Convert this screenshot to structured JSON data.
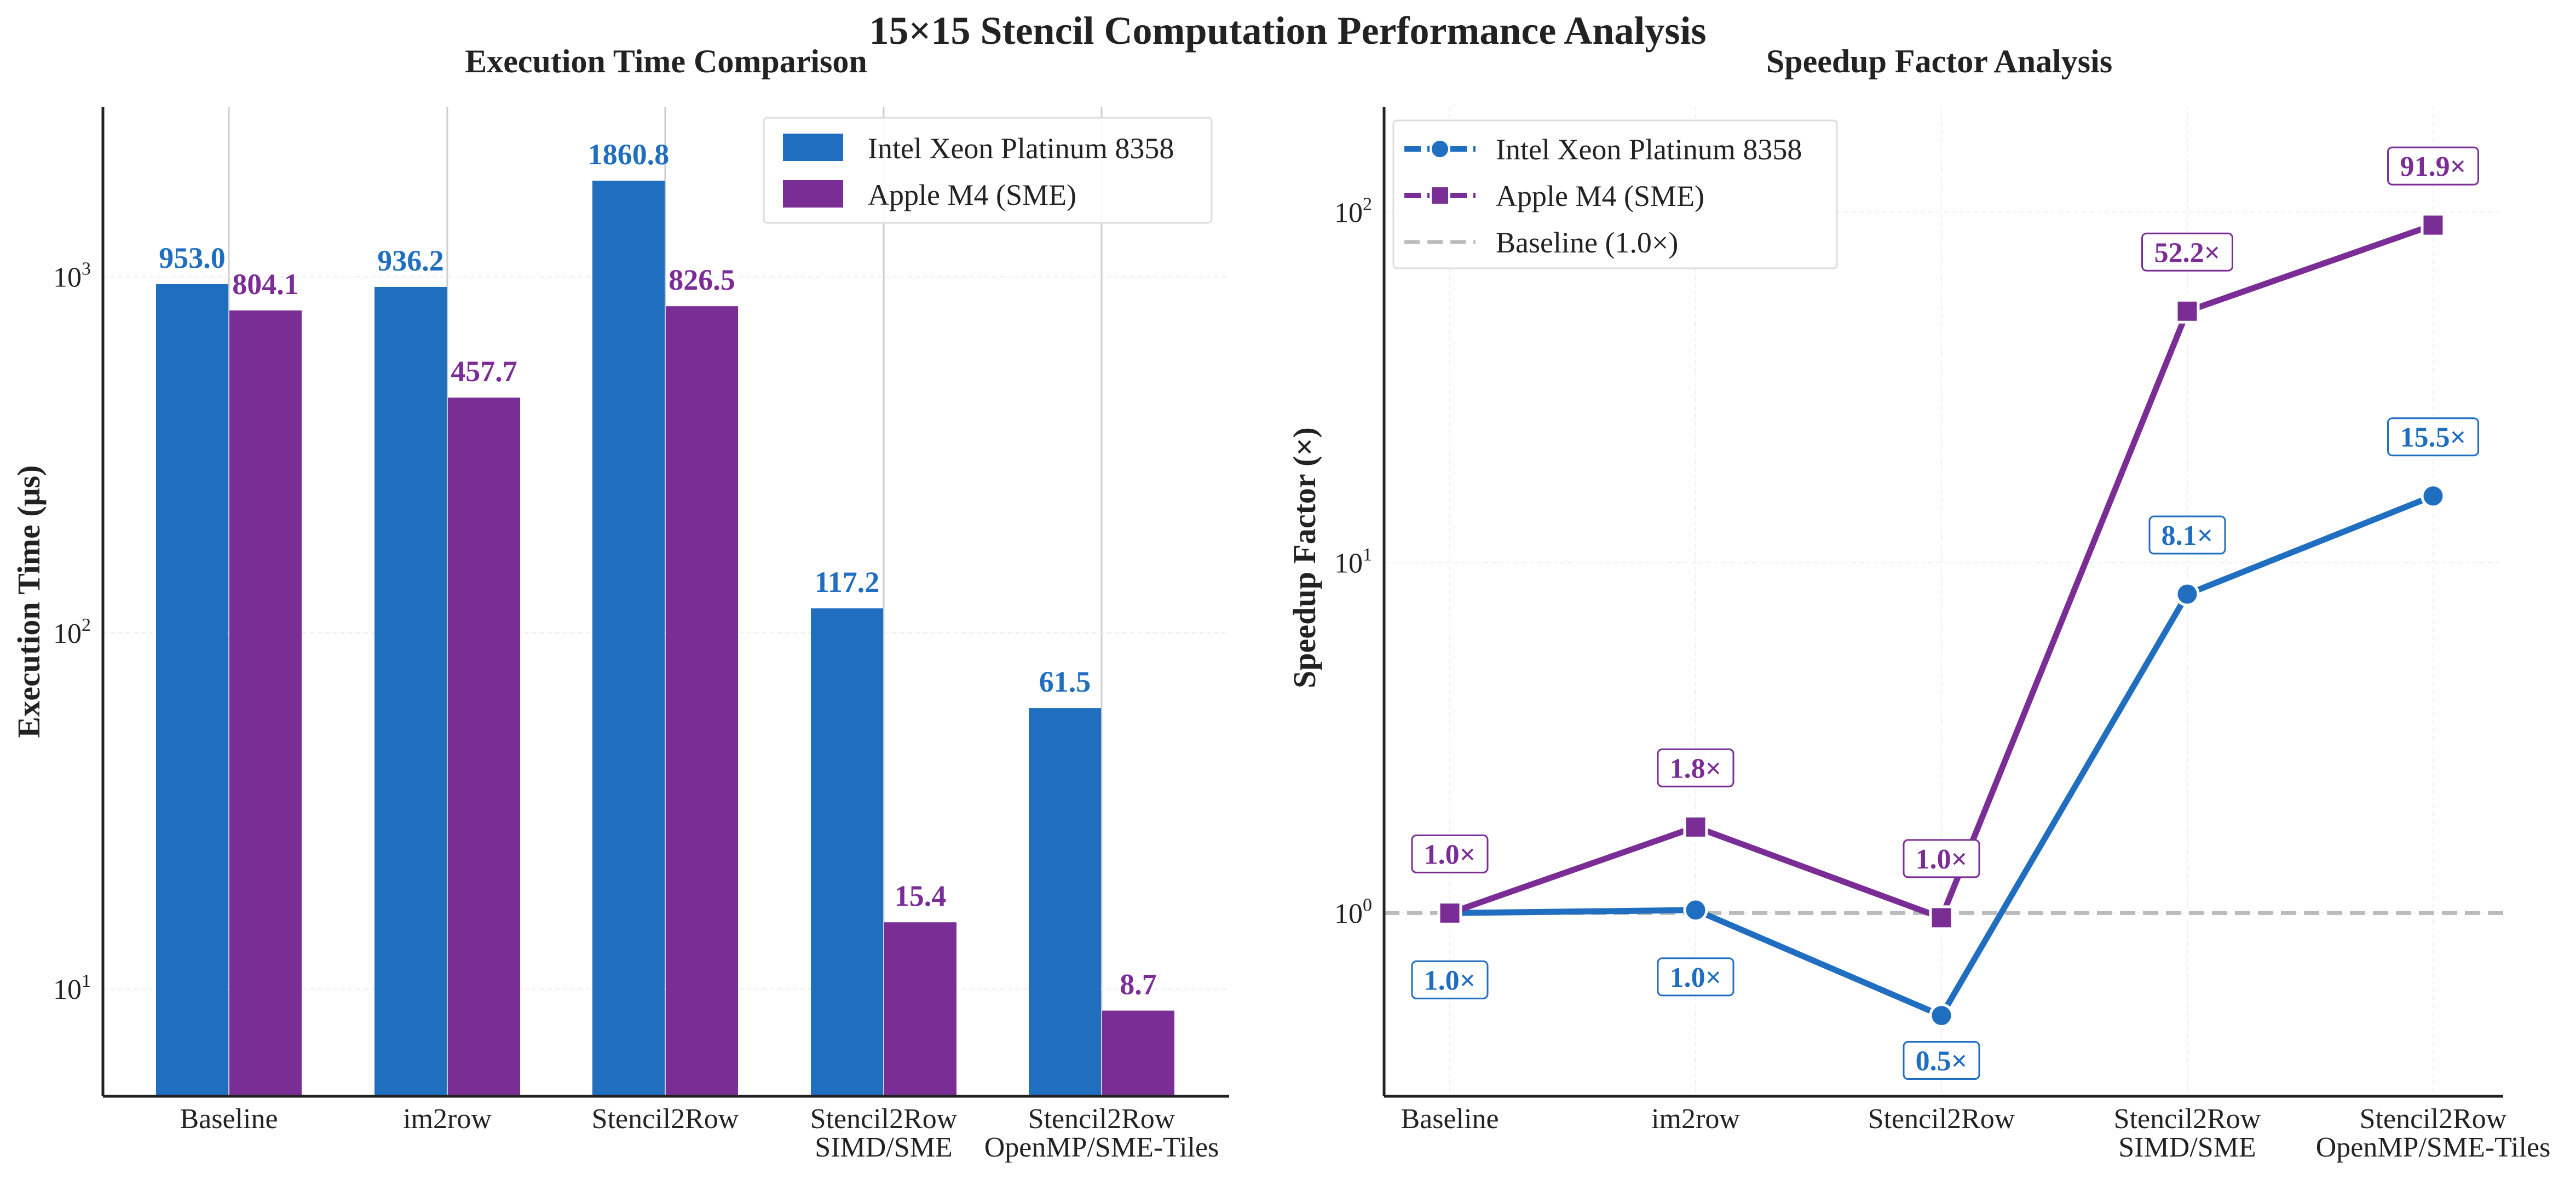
{
  "figure": {
    "title": "15×15 Stencil Computation Performance Analysis",
    "colors": {
      "intel": "#1f6ebf",
      "apple": "#7b2d96",
      "baseline_line": "#bbbbbb",
      "axis": "#222222"
    }
  },
  "chart_data": [
    {
      "type": "bar",
      "title": "Execution Time Comparison",
      "xlabel": "",
      "ylabel": "Execution Time (μs)",
      "yscale": "log",
      "ylim": [
        5,
        3000
      ],
      "yticks": [
        {
          "base": "10",
          "exp": "1",
          "value": 10
        },
        {
          "base": "10",
          "exp": "2",
          "value": 100
        },
        {
          "base": "10",
          "exp": "3",
          "value": 1000
        }
      ],
      "categories": [
        [
          "Baseline"
        ],
        [
          "im2row"
        ],
        [
          "Stencil2Row"
        ],
        [
          "Stencil2Row",
          "SIMD/SME"
        ],
        [
          "Stencil2Row",
          "OpenMP/SME-Tiles"
        ]
      ],
      "series": [
        {
          "name": "Intel Xeon Platinum 8358",
          "color": "#1f6ebf",
          "values": [
            953.0,
            936.2,
            1860.8,
            117.2,
            61.5
          ],
          "labels": [
            "953.0",
            "936.2",
            "1860.8",
            "117.2",
            "61.5"
          ]
        },
        {
          "name": "Apple M4 (SME)",
          "color": "#7b2d96",
          "values": [
            804.1,
            457.7,
            826.5,
            15.4,
            8.7
          ],
          "labels": [
            "804.1",
            "457.7",
            "826.5",
            "15.4",
            "8.7"
          ]
        }
      ],
      "legend": "top-right",
      "grid": true
    },
    {
      "type": "line",
      "title": "Speedup Factor Analysis",
      "xlabel": "",
      "ylabel": "Speedup Factor (×)",
      "yscale": "log",
      "ylim": [
        0.3,
        200
      ],
      "yticks": [
        {
          "base": "10",
          "exp": "0",
          "value": 1
        },
        {
          "base": "10",
          "exp": "1",
          "value": 10
        },
        {
          "base": "10",
          "exp": "2",
          "value": 100
        }
      ],
      "categories": [
        [
          "Baseline"
        ],
        [
          "im2row"
        ],
        [
          "Stencil2Row"
        ],
        [
          "Stencil2Row",
          "SIMD/SME"
        ],
        [
          "Stencil2Row",
          "OpenMP/SME-Tiles"
        ]
      ],
      "series": [
        {
          "name": "Intel Xeon Platinum 8358",
          "color": "#1f6ebf",
          "marker": "circle",
          "values": [
            1.0,
            1.02,
            0.51,
            8.13,
            15.5
          ],
          "labels": [
            "1.0×",
            "1.0×",
            "0.5×",
            "8.1×",
            "15.5×"
          ]
        },
        {
          "name": "Apple M4 (SME)",
          "color": "#7b2d96",
          "marker": "square",
          "values": [
            1.0,
            1.76,
            0.97,
            52.2,
            91.9
          ],
          "labels": [
            "1.0×",
            "1.8×",
            "1.0×",
            "52.2×",
            "91.9×"
          ]
        }
      ],
      "reference_line": {
        "name": "Baseline (1.0×)",
        "value": 1.0,
        "color": "#bbbbbb"
      },
      "legend": "top-left",
      "grid": true
    }
  ]
}
